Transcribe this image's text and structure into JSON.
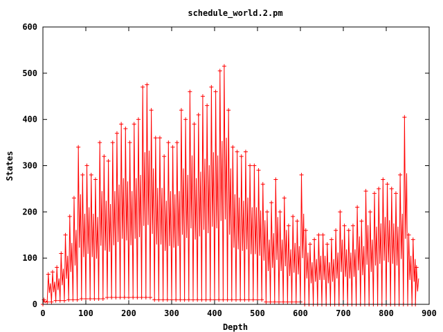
{
  "chart_data": {
    "type": "line",
    "title": "schedule_world.2.pm",
    "xlabel": "Depth",
    "ylabel": "States",
    "xlim": [
      0,
      900
    ],
    "ylim": [
      0,
      600
    ],
    "xticks": [
      "0",
      "100",
      "200",
      "300",
      "400",
      "500",
      "600",
      "700",
      "800",
      "900"
    ],
    "yticks": [
      "0",
      "100",
      "200",
      "300",
      "400",
      "500",
      "600"
    ],
    "grid": false,
    "legend": "none",
    "line_color": "#ff0000",
    "marker": "plus",
    "series": [
      {
        "x": [
          0,
          10,
          20,
          30,
          40,
          50,
          60,
          70,
          80,
          90,
          100,
          110,
          120,
          130,
          140,
          150,
          160,
          170,
          180,
          190,
          200,
          210,
          220,
          230,
          240,
          250,
          260,
          270,
          280,
          290,
          300,
          310,
          320,
          330,
          340,
          350,
          360,
          370,
          380,
          390,
          400,
          410,
          420,
          430,
          440,
          450,
          460,
          470,
          480,
          490,
          500,
          510,
          520,
          530,
          540,
          550,
          560,
          570,
          580,
          590,
          600,
          610,
          620,
          630,
          640,
          650,
          660,
          670,
          680,
          690,
          700,
          710,
          720,
          730,
          740,
          750,
          760,
          770,
          780,
          790,
          800,
          810,
          820,
          830,
          840,
          850,
          860,
          868
        ],
        "y_max": [
          10,
          65,
          70,
          80,
          110,
          150,
          190,
          230,
          340,
          280,
          300,
          280,
          270,
          350,
          320,
          310,
          350,
          370,
          390,
          380,
          350,
          390,
          400,
          470,
          475,
          420,
          360,
          360,
          320,
          350,
          340,
          350,
          420,
          400,
          460,
          390,
          410,
          450,
          430,
          470,
          460,
          505,
          515,
          420,
          340,
          330,
          320,
          330,
          300,
          300,
          290,
          260,
          200,
          220,
          270,
          200,
          230,
          170,
          190,
          180,
          280,
          160,
          130,
          140,
          150,
          150,
          130,
          140,
          160,
          200,
          170,
          160,
          170,
          210,
          180,
          245,
          200,
          240,
          250,
          270,
          260,
          250,
          240,
          280,
          405,
          150,
          140,
          80
        ],
        "y_min": [
          0,
          5,
          5,
          8,
          8,
          8,
          10,
          10,
          10,
          12,
          12,
          12,
          12,
          12,
          12,
          15,
          15,
          15,
          15,
          15,
          15,
          15,
          15,
          15,
          15,
          15,
          10,
          10,
          10,
          10,
          10,
          10,
          10,
          10,
          10,
          10,
          10,
          10,
          10,
          10,
          10,
          10,
          10,
          10,
          10,
          10,
          10,
          10,
          10,
          10,
          10,
          10,
          5,
          5,
          5,
          5,
          5,
          5,
          5,
          5,
          5,
          0,
          0,
          0,
          0,
          0,
          0,
          0,
          0,
          0,
          0,
          0,
          0,
          0,
          0,
          0,
          0,
          0,
          0,
          0,
          0,
          0,
          0,
          0,
          0,
          0,
          0,
          0
        ]
      }
    ]
  }
}
